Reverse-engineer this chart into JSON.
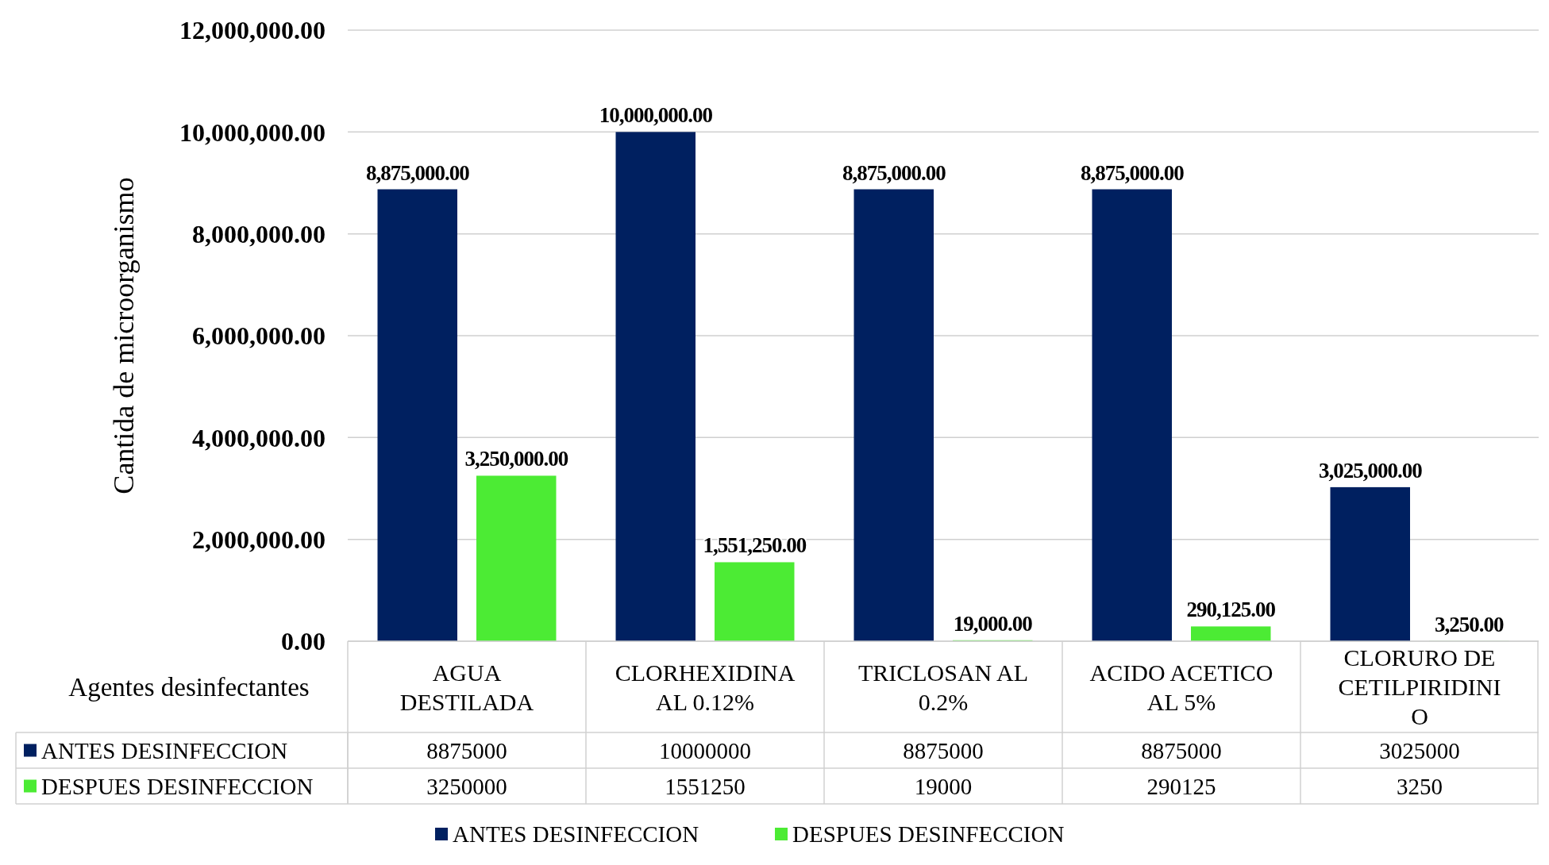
{
  "chart_data": [
    {
      "type": "bar",
      "ylabel": "Cantida de microorganismo",
      "xlabel": "Agentes desinfectantes",
      "categories": [
        "AGUA DESTILADA",
        "CLORHEXIDINA AL 0.12%",
        "TRICLOSAN AL 0.2%",
        "ACIDO ACETICO AL 5%",
        "CLORURO DE CETILPIRIDINIO"
      ],
      "series": [
        {
          "name": "ANTES DESINFECCION",
          "color": "#002060",
          "values": [
            8875000,
            10000000,
            8875000,
            8875000,
            3025000
          ],
          "value_labels": [
            "8,875,000.00",
            "10,000,000.00",
            "8,875,000.00",
            "8,875,000.00",
            "3,025,000.00"
          ]
        },
        {
          "name": "DESPUES DESINFECCION",
          "color": "#4ceb34",
          "values": [
            3250000,
            1551250,
            19000,
            290125,
            3250
          ],
          "value_labels": [
            "3,250,000.00",
            "1,551,250.00",
            "19,000.00",
            "290,125.00",
            "3,250.00"
          ]
        }
      ],
      "ylim": [
        0,
        12000000
      ],
      "yticks": [
        {
          "value": 0,
          "label": "0.00"
        },
        {
          "value": 2000000,
          "label": "2,000,000.00"
        },
        {
          "value": 4000000,
          "label": "4,000,000.00"
        },
        {
          "value": 6000000,
          "label": "6,000,000.00"
        },
        {
          "value": 8000000,
          "label": "8,000,000.00"
        },
        {
          "value": 10000000,
          "label": "10,000,000.00"
        },
        {
          "value": 12000000,
          "label": "12,000,000.00"
        }
      ],
      "grid": "y",
      "legend": "bottom"
    },
    {
      "type": "other",
      "annotations": [
        "8875000",
        "10000000",
        "8875000",
        "8875000",
        "3025000",
        "3250000",
        "1551250",
        "19000",
        "290125",
        "3250"
      ]
    }
  ]
}
